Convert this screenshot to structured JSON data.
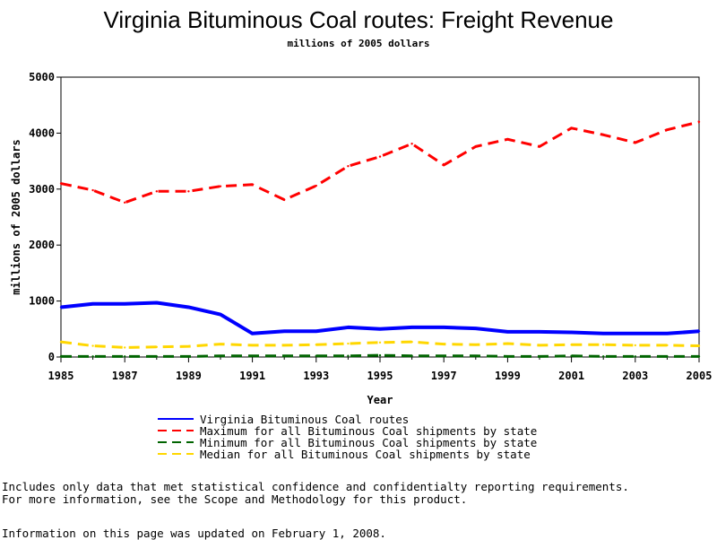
{
  "chart_data": {
    "type": "line",
    "title": "Virginia Bituminous Coal routes: Freight Revenue",
    "subtitle": "millions of 2005 dollars",
    "xlabel": "Year",
    "ylabel": "millions of 2005 dollars",
    "xlim": [
      1985,
      2005
    ],
    "ylim": [
      0,
      5000
    ],
    "x_ticks": [
      1985,
      1987,
      1989,
      1991,
      1993,
      1995,
      1997,
      1999,
      2001,
      2003,
      2005
    ],
    "y_ticks": [
      0,
      1000,
      2000,
      3000,
      4000,
      5000
    ],
    "x": [
      1985,
      1986,
      1987,
      1988,
      1989,
      1990,
      1991,
      1992,
      1993,
      1994,
      1995,
      1996,
      1997,
      1998,
      1999,
      2000,
      2001,
      2002,
      2003,
      2004,
      2005
    ],
    "legend_position": "bottom",
    "series": [
      {
        "name": "Virginia Bituminous Coal routes",
        "color": "#0000ff",
        "style": "solid",
        "values": [
          890,
          950,
          950,
          970,
          890,
          760,
          420,
          460,
          460,
          530,
          500,
          530,
          530,
          510,
          450,
          450,
          440,
          420,
          420,
          420,
          460
        ]
      },
      {
        "name": "Maximum for all Bituminous Coal shipments by state",
        "color": "#ff0000",
        "style": "dashed",
        "values": [
          3100,
          2980,
          2760,
          2960,
          2960,
          3050,
          3080,
          2810,
          3060,
          3410,
          3580,
          3810,
          3430,
          3760,
          3890,
          3760,
          4090,
          3970,
          3830,
          4060,
          4200
        ]
      },
      {
        "name": "Minimum for all Bituminous Coal shipments by state",
        "color": "#006400",
        "style": "dashed",
        "values": [
          10,
          10,
          10,
          10,
          10,
          20,
          20,
          20,
          20,
          20,
          30,
          20,
          20,
          20,
          10,
          10,
          20,
          10,
          10,
          10,
          10
        ]
      },
      {
        "name": "Median for all Bituminous Coal shipments by state",
        "color": "#ffd700",
        "style": "dashed",
        "values": [
          270,
          200,
          170,
          180,
          190,
          230,
          210,
          210,
          220,
          240,
          260,
          270,
          230,
          220,
          240,
          210,
          220,
          220,
          210,
          210,
          200
        ]
      }
    ]
  },
  "notes": {
    "line1": "Includes only data that met statistical confidence and confidentialty reporting requirements.",
    "line2": "For more information, see the Scope and Methodology for this product.",
    "updated": "Information on this page was updated on February 1, 2008."
  }
}
